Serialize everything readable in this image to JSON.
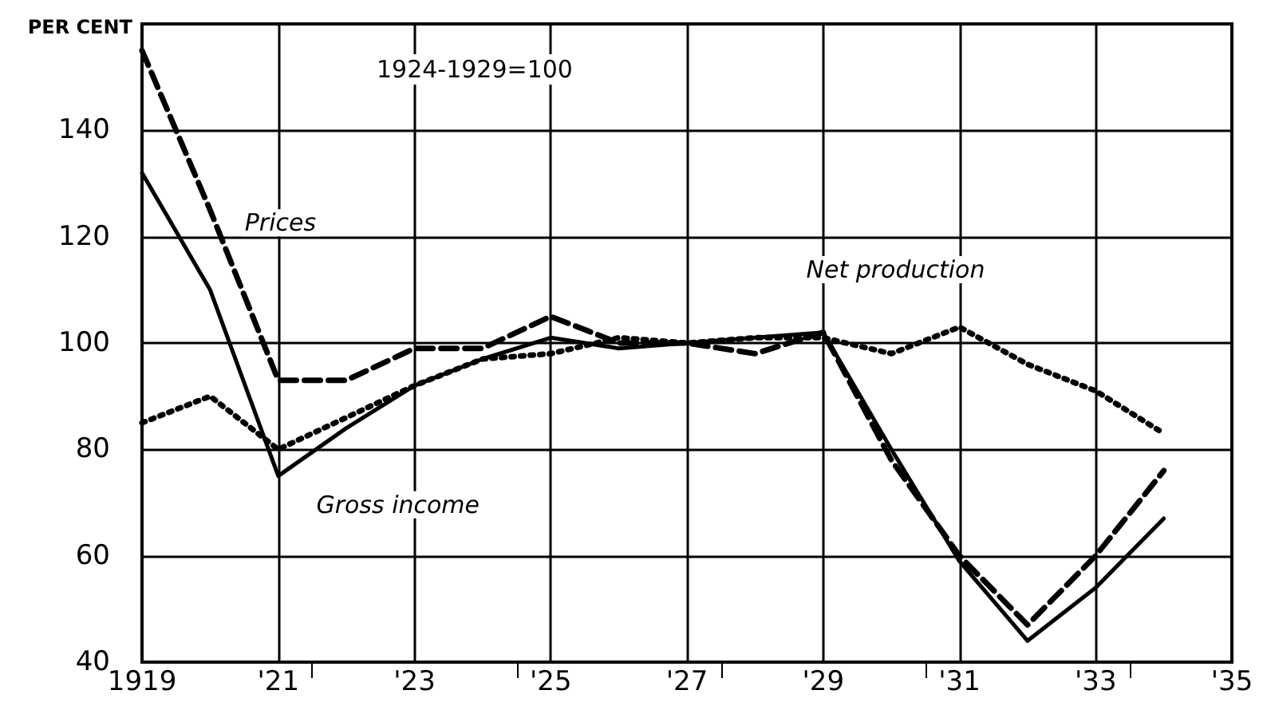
{
  "chart_data": {
    "type": "line",
    "ylabel": "PER CENT",
    "x": [
      1919,
      1920,
      1921,
      1922,
      1923,
      1924,
      1925,
      1926,
      1927,
      1928,
      1929,
      1930,
      1931,
      1932,
      1933,
      1934
    ],
    "series": [
      {
        "name": "Prices",
        "color": "#000000",
        "line_style": "dashed",
        "values": [
          155,
          125,
          93,
          93,
          99,
          99,
          105,
          100,
          100,
          98,
          102,
          78,
          60,
          47,
          60,
          76
        ]
      },
      {
        "name": "Gross income",
        "color": "#000000",
        "line_style": "solid",
        "values": [
          132,
          110,
          75,
          84,
          92,
          97,
          101,
          99,
          100,
          101,
          102,
          80,
          59,
          44,
          54,
          67
        ]
      },
      {
        "name": "Net production",
        "color": "#000000",
        "line_style": "dotted",
        "values": [
          85,
          90,
          80,
          86,
          92,
          97,
          98,
          101,
          100,
          101,
          101,
          98,
          103,
          96,
          91,
          83
        ]
      }
    ],
    "annotations": [
      "1924-1929=100"
    ],
    "xlim": [
      1919,
      1935
    ],
    "xticks": [
      1919,
      {
        "value": 1921,
        "label": "'21"
      },
      {
        "value": 1923,
        "label": "'23"
      },
      {
        "value": 1925,
        "label": "'25"
      },
      {
        "value": 1927,
        "label": "'27"
      },
      {
        "value": 1929,
        "label": "'29"
      },
      {
        "value": 1931,
        "label": "'31"
      },
      {
        "value": 1933,
        "label": "'33"
      },
      {
        "value": 1935,
        "label": "'35"
      }
    ],
    "ylim": [
      40,
      160
    ],
    "yticks": [
      40,
      60,
      80,
      100,
      120,
      140
    ],
    "grid": true,
    "marker": "none"
  }
}
